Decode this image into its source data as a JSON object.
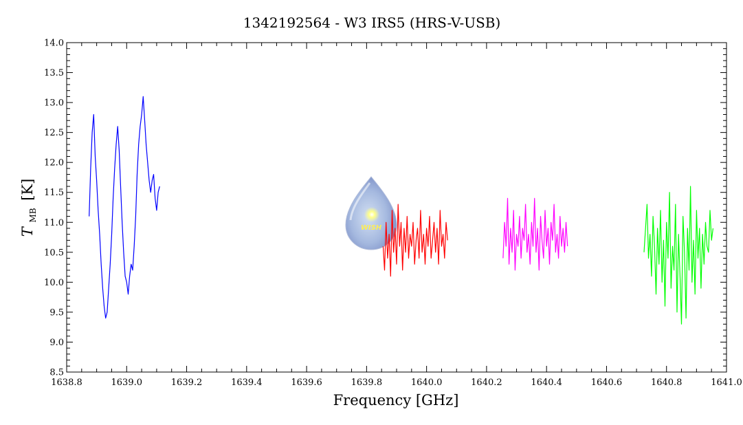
{
  "chart_data": {
    "type": "line",
    "title": "1342192564 - W3 IRS5 (HRS-V-USB)",
    "xlabel": "Frequency [GHz]",
    "ylabel_main": "T",
    "ylabel_sub": "MB",
    "ylabel_unit": "[K]",
    "xlim": [
      1638.8,
      1641.0
    ],
    "ylim": [
      8.5,
      14.0
    ],
    "xticks": [
      "1638.8",
      "1639.0",
      "1639.2",
      "1639.4",
      "1639.6",
      "1639.8",
      "1640.0",
      "1640.2",
      "1640.4",
      "1640.6",
      "1640.8",
      "1641.0"
    ],
    "yticks": [
      "8.5",
      "9.0",
      "9.5",
      "10.0",
      "10.5",
      "11.0",
      "11.5",
      "12.0",
      "12.5",
      "13.0",
      "13.5",
      "14.0"
    ],
    "grid": false,
    "legend": "none",
    "series": [
      {
        "color": "#0000ff",
        "x": [
          1638.875,
          1638.88,
          1638.885,
          1638.89,
          1638.895,
          1638.9,
          1638.905,
          1638.91,
          1638.915,
          1638.92,
          1638.925,
          1638.93,
          1638.935,
          1638.94,
          1638.945,
          1638.95,
          1638.955,
          1638.96,
          1638.965,
          1638.97,
          1638.975,
          1638.98,
          1638.985,
          1638.99,
          1638.995,
          1639.0,
          1639.005,
          1639.01,
          1639.015,
          1639.02,
          1639.025,
          1639.03,
          1639.035,
          1639.04,
          1639.045,
          1639.05,
          1639.055,
          1639.06,
          1639.065,
          1639.07,
          1639.075,
          1639.08,
          1639.085,
          1639.09,
          1639.095,
          1639.1,
          1639.105,
          1639.11
        ],
        "y": [
          11.1,
          11.9,
          12.5,
          12.8,
          12.1,
          11.7,
          11.2,
          10.8,
          10.3,
          9.9,
          9.6,
          9.4,
          9.5,
          9.9,
          10.3,
          10.8,
          11.4,
          11.9,
          12.3,
          12.6,
          12.2,
          11.6,
          11.0,
          10.5,
          10.1,
          10.0,
          9.8,
          10.1,
          10.3,
          10.2,
          10.6,
          11.1,
          11.8,
          12.3,
          12.6,
          12.8,
          13.1,
          12.7,
          12.3,
          12.0,
          11.7,
          11.5,
          11.7,
          11.8,
          11.4,
          11.2,
          11.5,
          11.6
        ]
      },
      {
        "color": "#ff0000",
        "x": [
          1639.855,
          1639.86,
          1639.865,
          1639.87,
          1639.875,
          1639.88,
          1639.885,
          1639.89,
          1639.895,
          1639.9,
          1639.905,
          1639.91,
          1639.915,
          1639.92,
          1639.925,
          1639.93,
          1639.935,
          1639.94,
          1639.945,
          1639.95,
          1639.955,
          1639.96,
          1639.965,
          1639.97,
          1639.975,
          1639.98,
          1639.985,
          1639.99,
          1639.995,
          1640.0,
          1640.005,
          1640.01,
          1640.015,
          1640.02,
          1640.025,
          1640.03,
          1640.035,
          1640.04,
          1640.045,
          1640.05,
          1640.055,
          1640.06,
          1640.065,
          1640.07
        ],
        "y": [
          10.6,
          10.2,
          11.0,
          10.4,
          10.8,
          10.1,
          11.2,
          10.5,
          10.9,
          10.3,
          11.3,
          10.6,
          11.0,
          10.2,
          10.9,
          10.5,
          11.1,
          10.4,
          10.8,
          10.6,
          11.0,
          10.3,
          10.7,
          10.9,
          10.4,
          11.2,
          10.5,
          10.8,
          10.3,
          10.9,
          10.6,
          11.1,
          10.4,
          10.7,
          11.0,
          10.5,
          10.9,
          10.3,
          11.2,
          10.6,
          10.8,
          10.4,
          11.0,
          10.7
        ]
      },
      {
        "color": "#ff00ff",
        "x": [
          1640.255,
          1640.26,
          1640.265,
          1640.27,
          1640.275,
          1640.28,
          1640.285,
          1640.29,
          1640.295,
          1640.3,
          1640.305,
          1640.31,
          1640.315,
          1640.32,
          1640.325,
          1640.33,
          1640.335,
          1640.34,
          1640.345,
          1640.35,
          1640.355,
          1640.36,
          1640.365,
          1640.37,
          1640.375,
          1640.38,
          1640.385,
          1640.39,
          1640.395,
          1640.4,
          1640.405,
          1640.41,
          1640.415,
          1640.42,
          1640.425,
          1640.43,
          1640.435,
          1640.44,
          1640.445,
          1640.45,
          1640.455,
          1640.46,
          1640.465,
          1640.47
        ],
        "y": [
          10.4,
          11.0,
          10.6,
          11.4,
          10.3,
          10.9,
          10.5,
          11.2,
          10.2,
          10.8,
          10.6,
          11.1,
          10.4,
          10.9,
          10.7,
          11.3,
          10.5,
          10.8,
          10.3,
          11.0,
          10.6,
          11.4,
          10.5,
          10.9,
          10.2,
          11.1,
          10.7,
          10.4,
          11.2,
          10.6,
          10.9,
          10.3,
          11.0,
          10.7,
          11.3,
          10.5,
          10.8,
          10.4,
          11.1,
          10.6,
          10.9,
          10.5,
          11.0,
          10.6
        ]
      },
      {
        "color": "#00ff00",
        "x": [
          1640.725,
          1640.73,
          1640.735,
          1640.74,
          1640.745,
          1640.75,
          1640.755,
          1640.76,
          1640.765,
          1640.77,
          1640.775,
          1640.78,
          1640.785,
          1640.79,
          1640.795,
          1640.8,
          1640.805,
          1640.81,
          1640.815,
          1640.82,
          1640.825,
          1640.83,
          1640.835,
          1640.84,
          1640.845,
          1640.85,
          1640.855,
          1640.86,
          1640.865,
          1640.87,
          1640.875,
          1640.88,
          1640.885,
          1640.89,
          1640.895,
          1640.9,
          1640.905,
          1640.91,
          1640.915,
          1640.92,
          1640.925,
          1640.93,
          1640.935,
          1640.94,
          1640.945,
          1640.95,
          1640.955
        ],
        "y": [
          10.5,
          10.9,
          11.3,
          10.4,
          10.8,
          10.1,
          11.1,
          10.6,
          9.8,
          10.9,
          10.3,
          11.2,
          10.0,
          10.7,
          9.6,
          11.0,
          10.4,
          11.5,
          9.9,
          10.6,
          10.2,
          11.3,
          9.5,
          10.8,
          10.1,
          9.3,
          11.1,
          10.5,
          9.4,
          10.9,
          10.2,
          11.6,
          10.0,
          10.7,
          9.8,
          11.2,
          10.4,
          10.9,
          9.9,
          10.8,
          10.3,
          11.0,
          10.6,
          10.5,
          11.2,
          10.7,
          10.9
        ]
      }
    ]
  }
}
